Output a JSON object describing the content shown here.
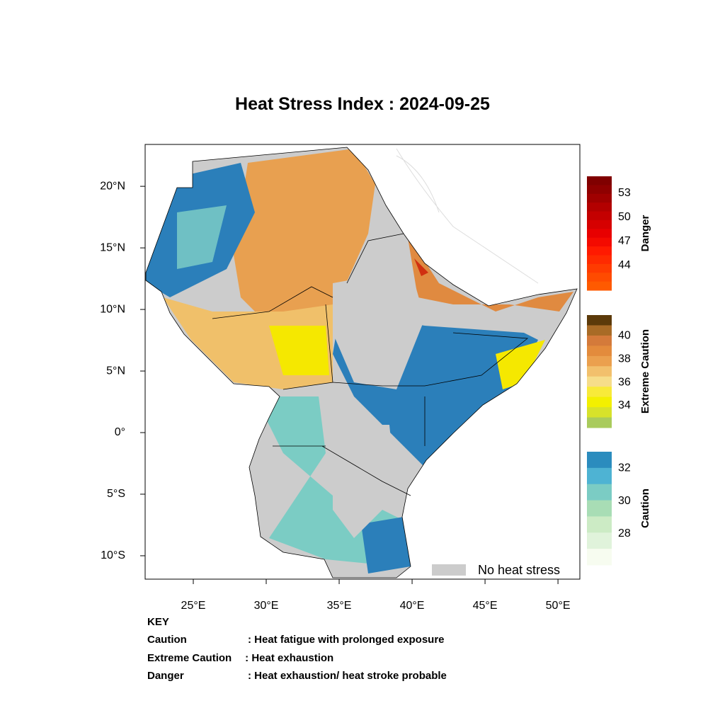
{
  "title": "Heat Stress Index : 2024-09-25",
  "map": {
    "xlim": [
      21.7,
      51.5
    ],
    "ylim": [
      -11.9,
      23.4
    ],
    "xticks": [
      {
        "value": 25,
        "label": "25°E"
      },
      {
        "value": 30,
        "label": "30°E"
      },
      {
        "value": 35,
        "label": "35°E"
      },
      {
        "value": 40,
        "label": "40°E"
      },
      {
        "value": 45,
        "label": "45°E"
      },
      {
        "value": 50,
        "label": "50°E"
      }
    ],
    "yticks": [
      {
        "value": 20,
        "label": "20°N"
      },
      {
        "value": 15,
        "label": "15°N"
      },
      {
        "value": 10,
        "label": "10°N"
      },
      {
        "value": 5,
        "label": "5°N"
      },
      {
        "value": 0,
        "label": "0°"
      },
      {
        "value": -5,
        "label": "5°S"
      },
      {
        "value": -10,
        "label": "10°S"
      }
    ]
  },
  "legend": {
    "label": "No heat stress",
    "color": "#cccccc"
  },
  "colorbars": [
    {
      "title": "Danger",
      "lim": [
        40.9,
        55.1
      ],
      "ticks": [
        53,
        50,
        47,
        44
      ],
      "colors": [
        "#800000",
        "#8f0000",
        "#a00000",
        "#b30000",
        "#c40000",
        "#d60000",
        "#e80000",
        "#f40a00",
        "#ff1a00",
        "#ff2a00",
        "#ff3b00",
        "#ff4b00",
        "#ff5a00"
      ]
    },
    {
      "title": "Extreme Caution",
      "lim": [
        32.1,
        41.8
      ],
      "ticks": [
        40,
        38,
        36,
        34
      ],
      "colors": [
        "#5c3a0a",
        "#a86b26",
        "#d47a3a",
        "#e38b3c",
        "#eba04e",
        "#f2c06c",
        "#f6dd8a",
        "#f8ea3a",
        "#f3f000",
        "#d7e22a",
        "#a9cb5c"
      ]
    },
    {
      "title": "Caution",
      "lim": [
        26.1,
        33.0
      ],
      "ticks": [
        32,
        30,
        28
      ],
      "colors": [
        "#2b8cbe",
        "#4eb3d3",
        "#7bccc4",
        "#a8ddb5",
        "#ccebc5",
        "#e0f3db",
        "#f7fcf0"
      ]
    }
  ],
  "key": {
    "title": "KEY",
    "rows": [
      {
        "term": "Caution",
        "meaning": ": Heat fatigue with prolonged exposure"
      },
      {
        "term": "Extreme Caution",
        "meaning": " : Heat exhaustion"
      },
      {
        "term": "Danger",
        "meaning": ": Heat exhaustion/ heat stroke probable"
      }
    ]
  }
}
